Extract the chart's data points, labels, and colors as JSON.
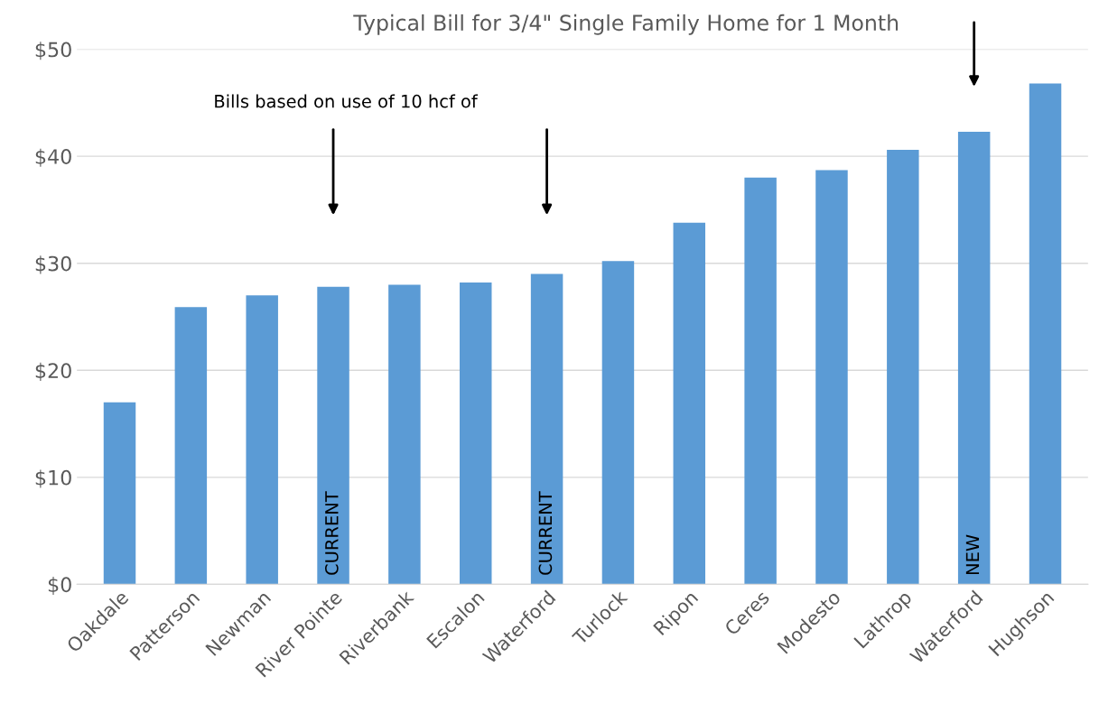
{
  "chart_data": {
    "type": "bar",
    "title": "Typical Bill for 3/4\" Single Family Home for 1 Month",
    "categories": [
      "Oakdale",
      "Patterson",
      "Newman",
      "River Pointe",
      "Riverbank",
      "Escalon",
      "Waterford",
      "Turlock",
      "Ripon",
      "Ceres",
      "Modesto",
      "Lathrop",
      "Waterford",
      "Hughson"
    ],
    "values": [
      17,
      25.9,
      27,
      27.8,
      28,
      28.2,
      29,
      30.2,
      33.8,
      38,
      38.7,
      40.6,
      42.3,
      46.8
    ],
    "color": "#5b9bd5",
    "ylim": [
      0,
      50
    ],
    "yticks": [
      {
        "value": 0,
        "label": "$0"
      },
      {
        "value": 10,
        "label": "$10"
      },
      {
        "value": 20,
        "label": "$20"
      },
      {
        "value": 30,
        "label": "$30"
      },
      {
        "value": 40,
        "label": "$40"
      },
      {
        "value": 50,
        "label": "$50"
      }
    ],
    "grid": "y",
    "annotations": [
      "Bills based on use of 10 hcf of",
      "CURRENT",
      "CURRENT",
      "NEW"
    ]
  }
}
